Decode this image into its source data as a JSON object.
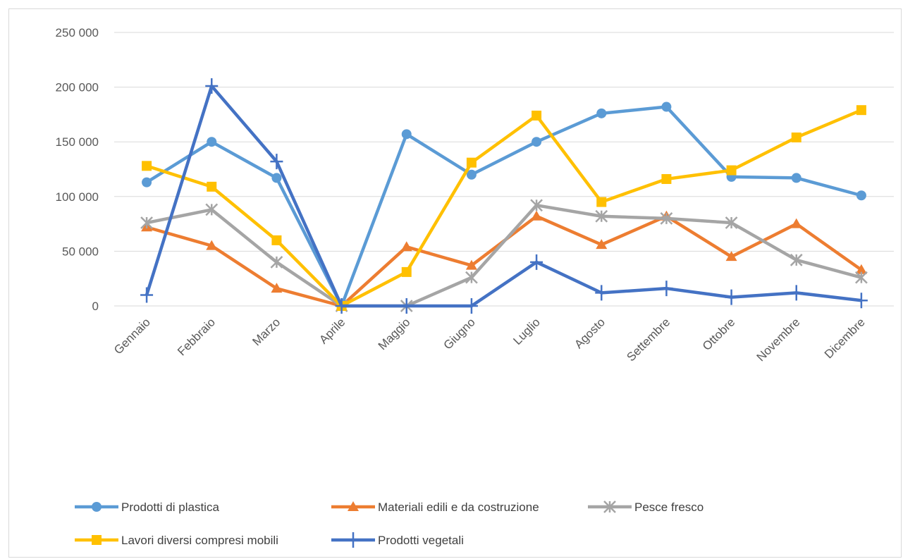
{
  "chart_data": {
    "type": "line",
    "categories": [
      "Gennaio",
      "Febbraio",
      "Marzo",
      "Aprile",
      "Maggio",
      "Giugno",
      "Luglio",
      "Agosto",
      "Settembre",
      "Ottobre",
      "Novembre",
      "Dicembre"
    ],
    "ylim": [
      0,
      250000
    ],
    "yticks": [
      0,
      50000,
      100000,
      150000,
      200000,
      250000
    ],
    "ytick_labels": [
      "0",
      "50 000",
      "100 000",
      "150 000",
      "200 000",
      "250 000"
    ],
    "grid": true,
    "legend_position": "bottom",
    "series": [
      {
        "name": "Prodotti di plastica",
        "color": "#5b9bd5",
        "marker": "circle",
        "values": [
          113000,
          150000,
          117000,
          0,
          157000,
          120000,
          150000,
          176000,
          182000,
          118000,
          117000,
          101000
        ]
      },
      {
        "name": "Materiali edili e da costruzione",
        "color": "#ed7d31",
        "marker": "triangle",
        "values": [
          72000,
          55000,
          16000,
          0,
          54000,
          37000,
          82000,
          56000,
          82000,
          45000,
          75000,
          33000
        ]
      },
      {
        "name": "Pesce fresco",
        "color": "#a5a5a5",
        "marker": "asterisk",
        "values": [
          76000,
          88000,
          40000,
          0,
          0,
          26000,
          92000,
          82000,
          80000,
          76000,
          42000,
          26000
        ]
      },
      {
        "name": "Lavori diversi compresi mobili",
        "color": "#ffc000",
        "marker": "square",
        "values": [
          128000,
          109000,
          60000,
          0,
          31000,
          131000,
          174000,
          95000,
          116000,
          124000,
          154000,
          179000
        ]
      },
      {
        "name": "Prodotti vegetali",
        "color": "#4472c4",
        "marker": "plus",
        "values": [
          10000,
          201000,
          132000,
          0,
          0,
          0,
          40000,
          12000,
          16000,
          8000,
          12000,
          5000
        ]
      }
    ]
  }
}
